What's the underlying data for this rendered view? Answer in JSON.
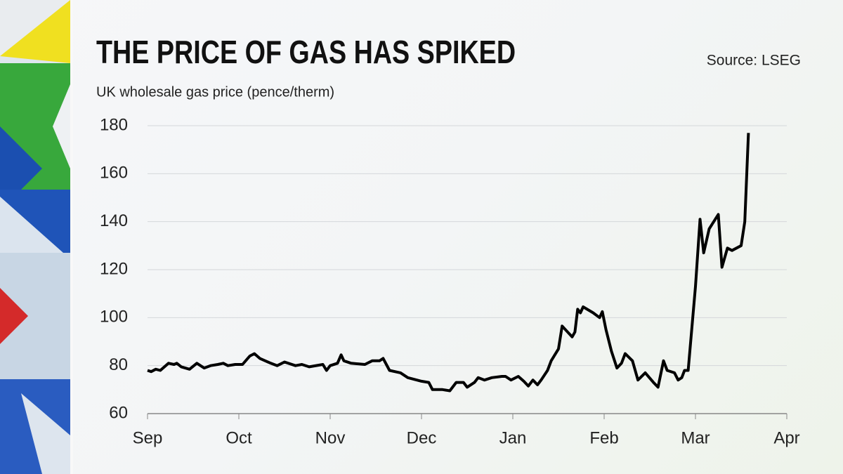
{
  "chart_data": {
    "type": "line",
    "title": "THE PRICE OF GAS HAS SPIKED",
    "subtitle": "UK wholesale gas price (pence/therm)",
    "source": "Source: LSEG",
    "xlim": [
      0,
      7
    ],
    "xticks": [
      {
        "value": 0,
        "label": "Sep"
      },
      {
        "value": 1,
        "label": "Oct"
      },
      {
        "value": 2,
        "label": "Nov"
      },
      {
        "value": 3,
        "label": "Dec"
      },
      {
        "value": 4,
        "label": "Jan"
      },
      {
        "value": 5,
        "label": "Feb"
      },
      {
        "value": 6,
        "label": "Mar"
      },
      {
        "value": 7,
        "label": "Apr"
      }
    ],
    "ylim": [
      60,
      180
    ],
    "yticks": [
      60,
      80,
      100,
      120,
      140,
      160,
      180
    ],
    "grid": true,
    "series": [
      {
        "color": "#000000",
        "x": [
          0,
          0.04,
          0.09,
          0.14,
          0.23,
          0.29,
          0.32,
          0.37,
          0.46,
          0.54,
          0.62,
          0.69,
          0.77,
          0.83,
          0.88,
          0.96,
          1.04,
          1.12,
          1.17,
          1.23,
          1.35,
          1.42,
          1.5,
          1.62,
          1.69,
          1.77,
          1.92,
          1.96,
          2.0,
          2.08,
          2.12,
          2.15,
          2.23,
          2.38,
          2.46,
          2.54,
          2.58,
          2.65,
          2.77,
          2.85,
          3.0,
          3.08,
          3.12,
          3.23,
          3.31,
          3.38,
          3.46,
          3.5,
          3.58,
          3.62,
          3.69,
          3.77,
          3.88,
          3.92,
          3.98,
          4.06,
          4.12,
          4.17,
          4.22,
          4.27,
          4.31,
          4.38,
          4.42,
          4.5,
          4.54,
          4.6,
          4.65,
          4.68,
          4.71,
          4.74,
          4.77,
          4.88,
          4.95,
          4.98,
          5.02,
          5.08,
          5.14,
          5.19,
          5.23,
          5.31,
          5.37,
          5.45,
          5.54,
          5.59,
          5.65,
          5.69,
          5.77,
          5.81,
          5.85,
          5.88,
          5.92,
          6.0,
          6.05,
          6.09,
          6.15,
          6.25,
          6.29,
          6.35,
          6.4,
          6.5,
          6.54,
          6.58
        ],
        "values": [
          78,
          77.5,
          78.5,
          78,
          81,
          80.5,
          81,
          79.5,
          78.5,
          81,
          79,
          80,
          80.5,
          81,
          80,
          80.5,
          80.5,
          84,
          85,
          83,
          81,
          80,
          81.5,
          80,
          80.5,
          79.5,
          80.5,
          78,
          80,
          81,
          84.5,
          82,
          81,
          80.5,
          82,
          82,
          83,
          78,
          77,
          75,
          73.5,
          73,
          70,
          70,
          69.5,
          73,
          73,
          71,
          73,
          75,
          74,
          75,
          75.5,
          75.5,
          74,
          75.5,
          73.5,
          71.5,
          74,
          72,
          74,
          78,
          82,
          87,
          96.5,
          94,
          92,
          94,
          103.5,
          102,
          104.5,
          102,
          100,
          102.5,
          95,
          86,
          79,
          81,
          85,
          82,
          74,
          77,
          73,
          71,
          82,
          78,
          77,
          74,
          75,
          78,
          78,
          113,
          141,
          127,
          137,
          143,
          121,
          129,
          128,
          130,
          140,
          177
        ]
      }
    ]
  }
}
